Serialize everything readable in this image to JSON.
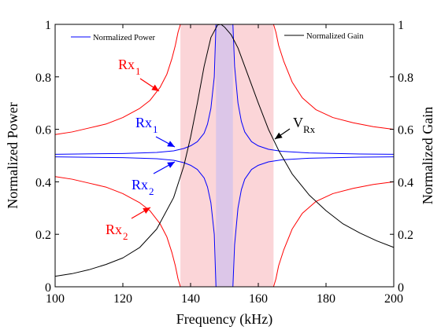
{
  "chart_data": {
    "type": "line",
    "xlabel": "Frequency (kHz)",
    "ylabel_left": "Normalized Power",
    "ylabel_right": "Normalized Gain",
    "xlim": [
      100,
      200
    ],
    "ylim_left": [
      0,
      1
    ],
    "ylim_right": [
      0,
      1
    ],
    "x_ticks": [
      "100",
      "120",
      "140",
      "160",
      "180",
      "200"
    ],
    "y_ticks_left": [
      "0",
      "0.2",
      "0.4",
      "0.6",
      "0.8",
      "1"
    ],
    "y_ticks_right": [
      "0",
      "0.2",
      "0.4",
      "0.6",
      "0.8",
      "1"
    ],
    "grid": false,
    "bands": [
      {
        "x0": 137,
        "x1": 164.5,
        "color": "#fbd5d8"
      },
      {
        "x0": 147.5,
        "x1": 152.5,
        "color": "#dcc6e8"
      }
    ],
    "legend_left": {
      "label": "Normalized Power",
      "color": "#0000ff",
      "placement": "top-left"
    },
    "legend_right": {
      "label": "Normalized Gain",
      "color": "#000000",
      "placement": "top-right"
    },
    "annotations": [
      {
        "id": "rx1-red",
        "text": "Rx",
        "sub": "1",
        "color": "#ff0000"
      },
      {
        "id": "rx1-blue",
        "text": "Rx",
        "sub": "1",
        "color": "#0000ff"
      },
      {
        "id": "rx2-blue",
        "text": "Rx",
        "sub": "2",
        "color": "#0000ff"
      },
      {
        "id": "rx2-red",
        "text": "Rx",
        "sub": "2",
        "color": "#ff0000"
      },
      {
        "id": "vrx",
        "text": "V",
        "sub": "Rx",
        "color": "#000000"
      }
    ],
    "series": [
      {
        "id": "red-upper",
        "color": "#ff0000",
        "axis": "left",
        "x": [
          100,
          105,
          110,
          115,
          120,
          125,
          128,
          131,
          133,
          134.5,
          135.5,
          136.3,
          137,
          164.5,
          165.2,
          166,
          167.5,
          170,
          173,
          177,
          182,
          188,
          194,
          200
        ],
        "y": [
          0.58,
          0.59,
          0.605,
          0.62,
          0.645,
          0.68,
          0.71,
          0.76,
          0.81,
          0.87,
          0.92,
          0.97,
          1.0,
          1.0,
          0.97,
          0.92,
          0.86,
          0.78,
          0.72,
          0.675,
          0.645,
          0.625,
          0.61,
          0.6
        ]
      },
      {
        "id": "red-lower",
        "color": "#ff0000",
        "axis": "left",
        "x": [
          100,
          105,
          110,
          115,
          120,
          125,
          128,
          131,
          133,
          134.5,
          135.5,
          136.3,
          137,
          164.5,
          165.2,
          166,
          167.5,
          170,
          173,
          177,
          182,
          188,
          194,
          200
        ],
        "y": [
          0.42,
          0.41,
          0.395,
          0.38,
          0.355,
          0.32,
          0.29,
          0.24,
          0.19,
          0.13,
          0.08,
          0.03,
          0.0,
          0.0,
          0.03,
          0.08,
          0.14,
          0.22,
          0.28,
          0.325,
          0.355,
          0.375,
          0.39,
          0.4
        ]
      },
      {
        "id": "blue-upper",
        "color": "#0000ff",
        "axis": "left",
        "x": [
          100,
          120,
          130,
          135,
          138,
          140,
          142,
          144,
          145,
          146,
          147,
          147.5,
          152.5,
          153,
          154,
          155,
          156,
          158,
          160,
          163,
          167,
          175,
          190,
          200
        ],
        "y": [
          0.505,
          0.508,
          0.512,
          0.518,
          0.527,
          0.537,
          0.553,
          0.585,
          0.62,
          0.68,
          0.8,
          1.0,
          1.0,
          0.84,
          0.7,
          0.63,
          0.59,
          0.553,
          0.537,
          0.524,
          0.516,
          0.51,
          0.506,
          0.505
        ]
      },
      {
        "id": "blue-lower",
        "color": "#0000ff",
        "axis": "left",
        "x": [
          100,
          120,
          130,
          135,
          138,
          140,
          142,
          144,
          145,
          146,
          147,
          147.5,
          152.5,
          153,
          154,
          155,
          156,
          158,
          160,
          163,
          167,
          175,
          190,
          200
        ],
        "y": [
          0.495,
          0.492,
          0.488,
          0.482,
          0.473,
          0.463,
          0.447,
          0.415,
          0.38,
          0.32,
          0.2,
          0.0,
          0.0,
          0.16,
          0.3,
          0.37,
          0.41,
          0.447,
          0.463,
          0.476,
          0.484,
          0.49,
          0.494,
          0.495
        ]
      },
      {
        "id": "vrx-gain",
        "color": "#000000",
        "axis": "right",
        "x": [
          100,
          105,
          110,
          115,
          120,
          125,
          130,
          135,
          138,
          140,
          142,
          144,
          146,
          148,
          149,
          150,
          152,
          154,
          156,
          158,
          160,
          163,
          166,
          170,
          175,
          180,
          185,
          190,
          195,
          200
        ],
        "y": [
          0.04,
          0.05,
          0.065,
          0.085,
          0.11,
          0.15,
          0.22,
          0.34,
          0.46,
          0.57,
          0.7,
          0.84,
          0.95,
          0.998,
          1.0,
          0.99,
          0.96,
          0.91,
          0.84,
          0.77,
          0.7,
          0.6,
          0.52,
          0.43,
          0.35,
          0.29,
          0.24,
          0.205,
          0.175,
          0.15
        ]
      }
    ]
  }
}
